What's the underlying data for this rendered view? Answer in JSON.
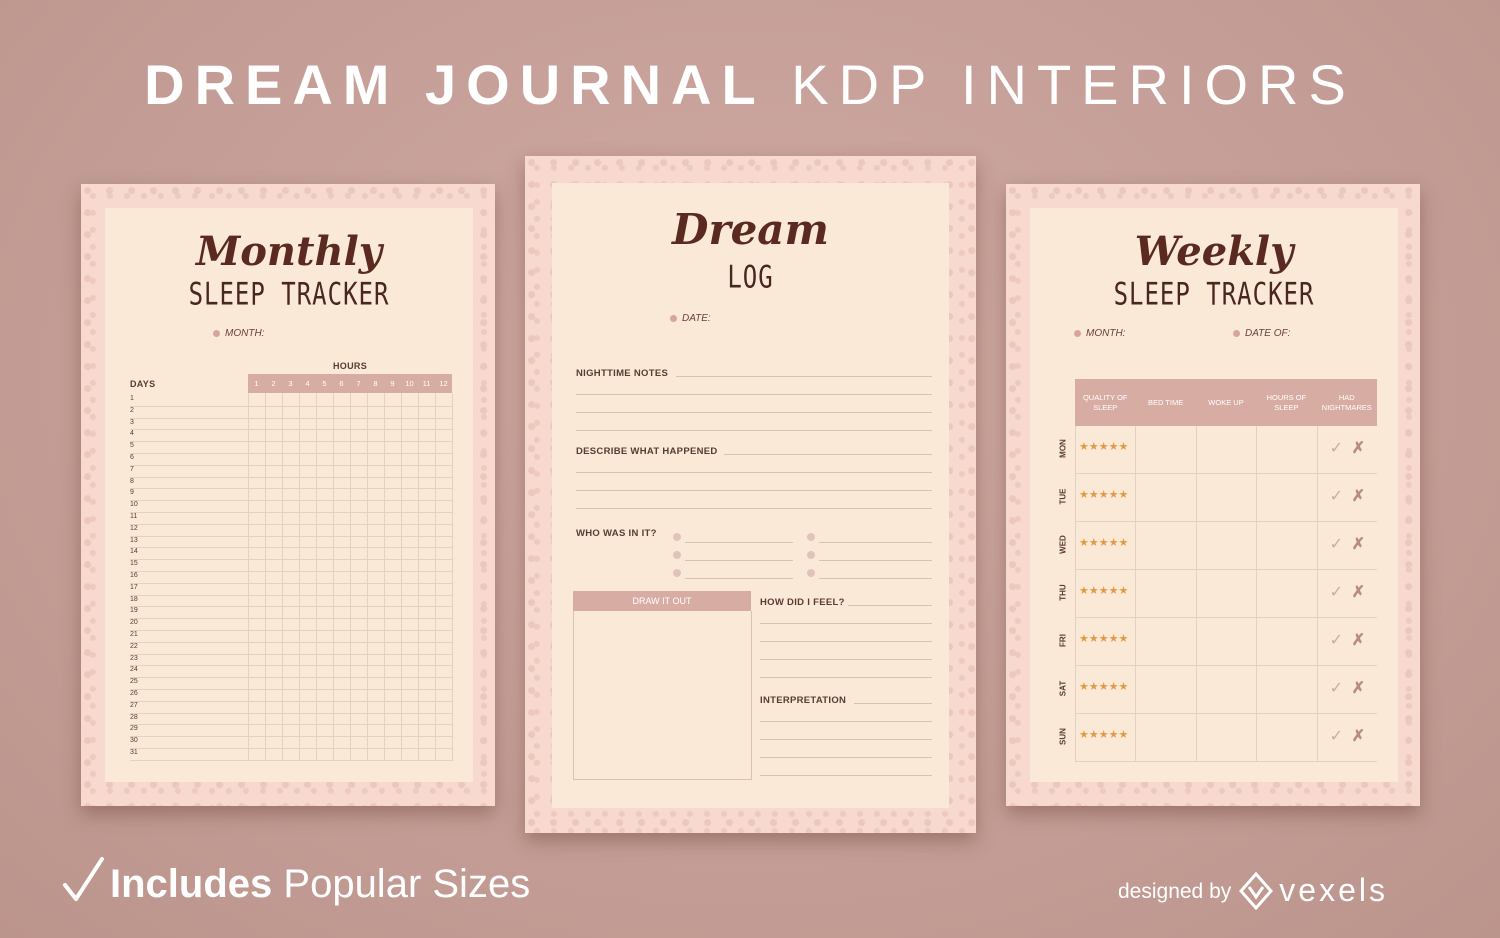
{
  "headline": {
    "bold": "DREAM JOURNAL",
    "light": "KDP INTERIORS"
  },
  "footer": {
    "includes": "Includes",
    "popular": "Popular Sizes",
    "designed_by": "designed by",
    "brand": "vexels"
  },
  "monthly": {
    "script_title": "Monthly",
    "subtitle": "SLEEP TRACKER",
    "month_label": "MONTH:",
    "hours_label": "HOURS",
    "days_label": "DAYS",
    "hours": [
      "1",
      "2",
      "3",
      "4",
      "5",
      "6",
      "7",
      "8",
      "9",
      "10",
      "11",
      "12"
    ],
    "days": [
      "1",
      "2",
      "3",
      "4",
      "5",
      "6",
      "7",
      "8",
      "9",
      "10",
      "11",
      "12",
      "13",
      "14",
      "15",
      "16",
      "17",
      "18",
      "19",
      "20",
      "21",
      "22",
      "23",
      "24",
      "25",
      "26",
      "27",
      "28",
      "29",
      "30",
      "31"
    ]
  },
  "dream": {
    "script_title": "Dream",
    "subtitle": "LOG",
    "date_label": "DATE:",
    "nighttime_notes": "NIGHTTIME NOTES",
    "describe": "DESCRIBE WHAT HAPPENED",
    "who": "WHO WAS IN IT?",
    "draw": "DRAW IT OUT",
    "feel": "HOW DID I FEEL?",
    "interpretation": "INTERPRETATION"
  },
  "weekly": {
    "script_title": "Weekly",
    "subtitle": "SLEEP TRACKER",
    "month_label": "MONTH:",
    "date_label": "DATE OF:",
    "columns": [
      "QUALITY OF SLEEP",
      "BED TIME",
      "WOKE UP",
      "HOURS OF SLEEP",
      "HAD NIGHTMARES"
    ],
    "days": [
      "MON",
      "TUE",
      "WED",
      "THU",
      "FRI",
      "SAT",
      "SUN"
    ],
    "stars": "★★★★★",
    "check": "✓",
    "cross": "✗"
  },
  "colors": {
    "accent": "#d7aca2",
    "ink": "#5a2a20",
    "paper": "#fbe9d8",
    "border": "#f7d9cf",
    "star": "#e39a48"
  }
}
